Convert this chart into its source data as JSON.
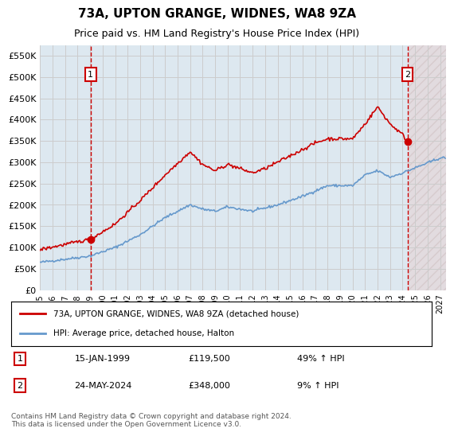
{
  "title": "73A, UPTON GRANGE, WIDNES, WA8 9ZA",
  "subtitle": "Price paid vs. HM Land Registry's House Price Index (HPI)",
  "legend_line1": "73A, UPTON GRANGE, WIDNES, WA8 9ZA (detached house)",
  "legend_line2": "HPI: Average price, detached house, Halton",
  "annotation1_label": "1",
  "annotation1_date": "15-JAN-1999",
  "annotation1_price": "£119,500",
  "annotation1_hpi": "49% ↑ HPI",
  "annotation2_label": "2",
  "annotation2_date": "24-MAY-2024",
  "annotation2_price": "£348,000",
  "annotation2_hpi": "9% ↑ HPI",
  "footer": "Contains HM Land Registry data © Crown copyright and database right 2024.\nThis data is licensed under the Open Government Licence v3.0.",
  "hpi_color": "#6699cc",
  "price_color": "#cc0000",
  "sale1_color": "#cc0000",
  "sale2_color": "#cc0000",
  "vline_color": "#cc0000",
  "grid_color": "#cccccc",
  "bg_color": "#dde8f0",
  "plot_bg": "#dde8f0",
  "hatch_color": "#ccaaaa",
  "ylim": [
    0,
    575000
  ],
  "yticks": [
    0,
    50000,
    100000,
    150000,
    200000,
    250000,
    300000,
    350000,
    400000,
    450000,
    500000,
    550000
  ],
  "xlim_start": 1995.0,
  "xlim_end": 2027.5,
  "xticks": [
    1995,
    1996,
    1997,
    1998,
    1999,
    2000,
    2001,
    2002,
    2003,
    2004,
    2005,
    2006,
    2007,
    2008,
    2009,
    2010,
    2011,
    2012,
    2013,
    2014,
    2015,
    2016,
    2017,
    2018,
    2019,
    2020,
    2021,
    2022,
    2023,
    2024,
    2025,
    2026,
    2027
  ],
  "sale1_x": 1999.04,
  "sale1_y": 119500,
  "sale2_x": 2024.39,
  "sale2_y": 348000,
  "future_x_start": 2024.5,
  "future_x_end": 2027.5
}
